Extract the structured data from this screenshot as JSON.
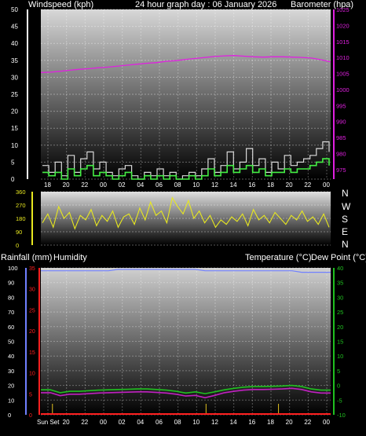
{
  "header": {
    "wind_label": "Windspeed (kph)",
    "title": "24 hour graph day : 06 January 2026",
    "baro_label": "Barometer (hpa)"
  },
  "lower_header": {
    "rain_label": "Rainfall (mm)",
    "humidity_label": "Humidity",
    "temp_label": "Temperature (°C)",
    "dew_label": "Dew Point (°C)"
  },
  "direction_labels": [
    "N",
    "W",
    "S",
    "E",
    "N"
  ],
  "colors": {
    "wind_gust": "#d8d8d8",
    "wind_avg": "#44ee44",
    "barometer": "#e020e0",
    "direction": "#e8e820",
    "temperature": "#20c020",
    "dew_point": "#c020c0",
    "humidity": "#7080ff",
    "rain": "#e0c020",
    "rain_rate": "#ff2020"
  },
  "chart_data": [
    {
      "type": "line",
      "name": "wind-and-barometer",
      "x_ticks": [
        "18",
        "20",
        "22",
        "00",
        "02",
        "04",
        "06",
        "08",
        "10",
        "12",
        "14",
        "16",
        "18",
        "20",
        "22",
        "00"
      ],
      "y_left": {
        "label": "Windspeed (kph)",
        "ticks": [
          0,
          5,
          10,
          15,
          20,
          25,
          30,
          35,
          40,
          45,
          50
        ],
        "range": [
          0,
          50
        ]
      },
      "y_right": {
        "label": "Barometer (hpa)",
        "ticks": [
          975,
          980,
          985,
          990,
          995,
          1000,
          1005,
          1010,
          1015,
          1020,
          1025
        ],
        "range": [
          972,
          1025
        ]
      },
      "barometer": [
        1005.3,
        1005.4,
        1005.7,
        1006,
        1006.3,
        1006.5,
        1006.8,
        1007,
        1007.3,
        1007.6,
        1007.9,
        1008.2,
        1008.4,
        1008.8,
        1009,
        1009.4,
        1009.7,
        1010,
        1010.3,
        1010.5,
        1010.6,
        1010.4,
        1010.2,
        1010.1,
        1010.2,
        1010.2,
        1010.1,
        1010,
        1009.8,
        1009.3,
        1008.6
      ],
      "gust": [
        4,
        2,
        5,
        1,
        7,
        2,
        6,
        8,
        3,
        5,
        2,
        1,
        3,
        4,
        1,
        0,
        2,
        1,
        3,
        1,
        2,
        0,
        1,
        2,
        1,
        3,
        6,
        2,
        4,
        8,
        3,
        5,
        9,
        4,
        6,
        2,
        5,
        3,
        7,
        4,
        5,
        6,
        7,
        9,
        11,
        8
      ],
      "average": [
        2,
        1,
        2,
        0,
        3,
        1,
        3,
        4,
        1,
        2,
        1,
        0,
        1,
        2,
        0,
        0,
        1,
        0,
        1,
        0,
        1,
        0,
        0,
        1,
        0,
        1,
        3,
        1,
        2,
        4,
        2,
        3,
        4,
        2,
        3,
        1,
        2,
        2,
        3,
        2,
        3,
        3,
        4,
        5,
        6,
        4
      ]
    },
    {
      "type": "line",
      "name": "wind-direction",
      "y_ticks": [
        0,
        90,
        180,
        270,
        360
      ],
      "range": [
        0,
        360
      ],
      "direction": [
        150,
        210,
        120,
        260,
        180,
        220,
        110,
        200,
        170,
        240,
        130,
        200,
        160,
        230,
        120,
        190,
        210,
        140,
        250,
        170,
        290,
        200,
        230,
        150,
        320,
        260,
        210,
        300,
        180,
        230,
        150,
        200,
        120,
        170,
        140,
        190,
        160,
        210,
        130,
        240,
        170,
        200,
        150,
        220,
        180,
        140,
        200,
        170,
        230,
        160,
        190,
        140,
        210,
        120
      ]
    },
    {
      "type": "line",
      "name": "temperature-humidity-rain",
      "x_ticks": [
        "Sun Set",
        "20",
        "22",
        "00",
        "02",
        "04",
        "06",
        "08",
        "10",
        "12",
        "14",
        "16",
        "18",
        "20",
        "22",
        "00"
      ],
      "y_left": {
        "label": "Rainfall (mm) / Humidity",
        "ticks": [
          0,
          10,
          20,
          30,
          40,
          50,
          60,
          70,
          80,
          90,
          100
        ],
        "range": [
          0,
          100
        ]
      },
      "y_rain_rate": {
        "ticks": [
          0,
          5,
          10,
          15,
          20,
          25,
          30,
          35
        ],
        "range": [
          0,
          35
        ]
      },
      "y_right": {
        "label": "Temperature (°C)",
        "ticks": [
          -10,
          -5,
          0,
          5,
          10,
          15,
          20,
          25,
          30,
          35,
          40
        ],
        "range": [
          -10,
          40
        ]
      },
      "humidity": [
        98,
        98,
        98,
        98,
        98,
        98,
        98,
        98,
        99,
        99,
        99,
        99,
        99,
        99,
        99,
        99,
        99,
        98,
        98,
        98,
        98,
        98,
        98,
        98,
        98,
        98,
        98,
        97,
        97,
        97,
        97
      ],
      "temperature": [
        -1.5,
        -1.5,
        -2.5,
        -2,
        -2,
        -1.8,
        -1.6,
        -1.5,
        -1.4,
        -1.3,
        -1.2,
        -1.2,
        -1.4,
        -1.6,
        -2,
        -2.6,
        -2.2,
        -2.8,
        -2.2,
        -1.5,
        -1,
        -0.6,
        -0.4,
        -0.4,
        -0.3,
        -0.2,
        0,
        -0.4,
        -1.2,
        -1.6,
        -1.6
      ],
      "dew_point": [
        -2.5,
        -2.5,
        -3.5,
        -3,
        -3,
        -2.8,
        -2.6,
        -2.5,
        -2.4,
        -2.3,
        -2.2,
        -2.2,
        -2.4,
        -2.6,
        -3,
        -3.6,
        -3.4,
        -4.2,
        -3.4,
        -2.5,
        -2,
        -1.6,
        -1.4,
        -1.4,
        -1.3,
        -1.2,
        -1,
        -1.4,
        -2.2,
        -2.6,
        -2.6
      ]
    }
  ]
}
